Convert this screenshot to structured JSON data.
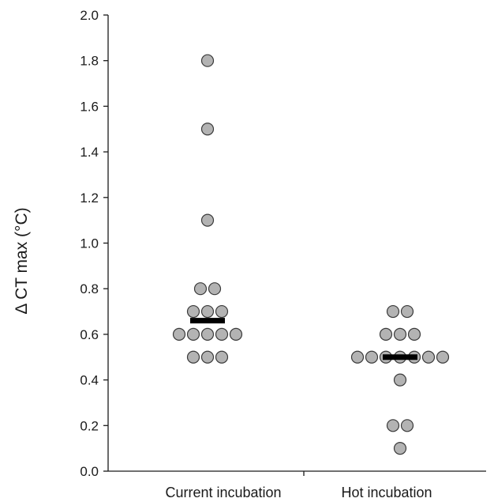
{
  "chart_data": {
    "type": "scatter",
    "title": "",
    "xlabel": "",
    "ylabel": "Δ CT max (°C)",
    "ylim": [
      0,
      2.0
    ],
    "yticks": [
      "0.0",
      "0.2",
      "0.4",
      "0.6",
      "0.8",
      "1.0",
      "1.2",
      "1.4",
      "1.6",
      "1.8",
      "2.0"
    ],
    "categories": [
      "Current incubation",
      "Hot incubation"
    ],
    "grid": false,
    "legend": "none",
    "colors": {
      "point_fill": "#b3b3b3",
      "point_stroke": "#3a3a3a",
      "median_bar": "#000000",
      "axis": "#1a1a1a"
    },
    "series": [
      {
        "category": "Current incubation",
        "median": 0.66,
        "points": [
          {
            "y": 1.8,
            "slot": 0
          },
          {
            "y": 1.5,
            "slot": 0
          },
          {
            "y": 1.1,
            "slot": 0
          },
          {
            "y": 0.8,
            "slot": -0.5
          },
          {
            "y": 0.8,
            "slot": 0.5
          },
          {
            "y": 0.7,
            "slot": -1
          },
          {
            "y": 0.7,
            "slot": 0
          },
          {
            "y": 0.7,
            "slot": 1
          },
          {
            "y": 0.6,
            "slot": -2
          },
          {
            "y": 0.6,
            "slot": -1
          },
          {
            "y": 0.6,
            "slot": 0
          },
          {
            "y": 0.6,
            "slot": 1
          },
          {
            "y": 0.6,
            "slot": 2
          },
          {
            "y": 0.5,
            "slot": -1
          },
          {
            "y": 0.5,
            "slot": 0
          },
          {
            "y": 0.5,
            "slot": 1
          }
        ]
      },
      {
        "category": "Hot incubation",
        "median": 0.5,
        "points": [
          {
            "y": 0.7,
            "slot": -0.5
          },
          {
            "y": 0.7,
            "slot": 0.5
          },
          {
            "y": 0.6,
            "slot": -1
          },
          {
            "y": 0.6,
            "slot": 0
          },
          {
            "y": 0.6,
            "slot": 1
          },
          {
            "y": 0.5,
            "slot": -3
          },
          {
            "y": 0.5,
            "slot": -2
          },
          {
            "y": 0.5,
            "slot": -1
          },
          {
            "y": 0.5,
            "slot": 0
          },
          {
            "y": 0.5,
            "slot": 1
          },
          {
            "y": 0.5,
            "slot": 2
          },
          {
            "y": 0.5,
            "slot": 3
          },
          {
            "y": 0.4,
            "slot": 0
          },
          {
            "y": 0.2,
            "slot": -0.5
          },
          {
            "y": 0.2,
            "slot": 0.5
          },
          {
            "y": 0.1,
            "slot": 0
          }
        ]
      }
    ]
  }
}
